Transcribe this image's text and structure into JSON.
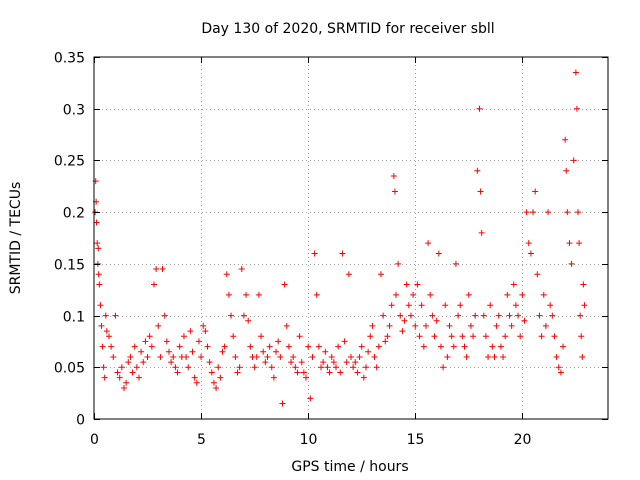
{
  "chart_data": {
    "type": "scatter",
    "title": "Day 130 of 2020, SRMTID for receiver sbll",
    "xlabel": "GPS time / hours",
    "ylabel": "SRMTID / TECUs",
    "xlim": [
      0,
      24
    ],
    "ylim": [
      0,
      0.35
    ],
    "xticks": [
      0,
      5,
      10,
      15,
      20
    ],
    "xtick_labels": [
      "0",
      "5",
      "10",
      "15",
      "20"
    ],
    "yticks": [
      0,
      0.05,
      0.1,
      0.15,
      0.2,
      0.25,
      0.3,
      0.35
    ],
    "ytick_labels": [
      "0",
      "0.05",
      "0.1",
      "0.15",
      "0.2",
      "0.25",
      "0.3",
      "0.35"
    ],
    "grid": true,
    "marker": "+",
    "color": "#ff0000",
    "series": [
      {
        "name": "SRMTID",
        "points": [
          [
            0.05,
            0.2
          ],
          [
            0.08,
            0.23
          ],
          [
            0.1,
            0.21
          ],
          [
            0.12,
            0.19
          ],
          [
            0.15,
            0.17
          ],
          [
            0.18,
            0.15
          ],
          [
            0.2,
            0.165
          ],
          [
            0.22,
            0.14
          ],
          [
            0.25,
            0.13
          ],
          [
            0.3,
            0.11
          ],
          [
            0.35,
            0.09
          ],
          [
            0.4,
            0.07
          ],
          [
            0.45,
            0.05
          ],
          [
            0.5,
            0.04
          ],
          [
            0.55,
            0.1
          ],
          [
            0.6,
            0.085
          ],
          [
            0.7,
            0.08
          ],
          [
            0.8,
            0.07
          ],
          [
            0.9,
            0.06
          ],
          [
            1.0,
            0.1
          ],
          [
            1.1,
            0.045
          ],
          [
            1.2,
            0.04
          ],
          [
            1.3,
            0.05
          ],
          [
            1.4,
            0.03
          ],
          [
            1.5,
            0.035
          ],
          [
            1.6,
            0.055
          ],
          [
            1.7,
            0.06
          ],
          [
            1.8,
            0.045
          ],
          [
            1.9,
            0.07
          ],
          [
            2.0,
            0.05
          ],
          [
            2.1,
            0.04
          ],
          [
            2.2,
            0.065
          ],
          [
            2.3,
            0.055
          ],
          [
            2.4,
            0.075
          ],
          [
            2.5,
            0.06
          ],
          [
            2.6,
            0.08
          ],
          [
            2.7,
            0.07
          ],
          [
            2.8,
            0.13
          ],
          [
            2.9,
            0.145
          ],
          [
            3.0,
            0.09
          ],
          [
            3.1,
            0.06
          ],
          [
            3.2,
            0.145
          ],
          [
            3.3,
            0.1
          ],
          [
            3.4,
            0.075
          ],
          [
            3.5,
            0.065
          ],
          [
            3.6,
            0.055
          ],
          [
            3.7,
            0.06
          ],
          [
            3.8,
            0.05
          ],
          [
            3.9,
            0.045
          ],
          [
            4.0,
            0.07
          ],
          [
            4.1,
            0.06
          ],
          [
            4.2,
            0.08
          ],
          [
            4.3,
            0.06
          ],
          [
            4.4,
            0.05
          ],
          [
            4.5,
            0.085
          ],
          [
            4.6,
            0.065
          ],
          [
            4.7,
            0.04
          ],
          [
            4.8,
            0.035
          ],
          [
            4.9,
            0.075
          ],
          [
            5.0,
            0.06
          ],
          [
            5.1,
            0.09
          ],
          [
            5.2,
            0.085
          ],
          [
            5.3,
            0.07
          ],
          [
            5.4,
            0.055
          ],
          [
            5.5,
            0.045
          ],
          [
            5.6,
            0.035
          ],
          [
            5.7,
            0.03
          ],
          [
            5.8,
            0.05
          ],
          [
            5.9,
            0.04
          ],
          [
            6.0,
            0.065
          ],
          [
            6.1,
            0.07
          ],
          [
            6.2,
            0.14
          ],
          [
            6.3,
            0.12
          ],
          [
            6.4,
            0.1
          ],
          [
            6.5,
            0.08
          ],
          [
            6.6,
            0.06
          ],
          [
            6.7,
            0.045
          ],
          [
            6.8,
            0.05
          ],
          [
            6.9,
            0.145
          ],
          [
            7.0,
            0.1
          ],
          [
            7.1,
            0.12
          ],
          [
            7.2,
            0.095
          ],
          [
            7.3,
            0.07
          ],
          [
            7.4,
            0.06
          ],
          [
            7.5,
            0.05
          ],
          [
            7.6,
            0.06
          ],
          [
            7.7,
            0.12
          ],
          [
            7.8,
            0.08
          ],
          [
            7.9,
            0.065
          ],
          [
            8.0,
            0.055
          ],
          [
            8.1,
            0.06
          ],
          [
            8.2,
            0.07
          ],
          [
            8.3,
            0.05
          ],
          [
            8.4,
            0.04
          ],
          [
            8.5,
            0.065
          ],
          [
            8.6,
            0.075
          ],
          [
            8.7,
            0.06
          ],
          [
            8.8,
            0.015
          ],
          [
            8.9,
            0.13
          ],
          [
            9.0,
            0.09
          ],
          [
            9.1,
            0.07
          ],
          [
            9.2,
            0.055
          ],
          [
            9.3,
            0.06
          ],
          [
            9.4,
            0.05
          ],
          [
            9.5,
            0.045
          ],
          [
            9.6,
            0.08
          ],
          [
            9.7,
            0.055
          ],
          [
            9.8,
            0.045
          ],
          [
            9.9,
            0.04
          ],
          [
            10.0,
            0.07
          ],
          [
            10.1,
            0.02
          ],
          [
            10.2,
            0.06
          ],
          [
            10.3,
            0.16
          ],
          [
            10.4,
            0.12
          ],
          [
            10.5,
            0.07
          ],
          [
            10.6,
            0.05
          ],
          [
            10.7,
            0.055
          ],
          [
            10.8,
            0.065
          ],
          [
            10.9,
            0.05
          ],
          [
            11.0,
            0.045
          ],
          [
            11.1,
            0.06
          ],
          [
            11.2,
            0.055
          ],
          [
            11.3,
            0.05
          ],
          [
            11.4,
            0.07
          ],
          [
            11.5,
            0.045
          ],
          [
            11.6,
            0.16
          ],
          [
            11.7,
            0.075
          ],
          [
            11.8,
            0.055
          ],
          [
            11.9,
            0.14
          ],
          [
            12.0,
            0.06
          ],
          [
            12.1,
            0.05
          ],
          [
            12.2,
            0.055
          ],
          [
            12.3,
            0.045
          ],
          [
            12.4,
            0.06
          ],
          [
            12.5,
            0.07
          ],
          [
            12.6,
            0.04
          ],
          [
            12.7,
            0.05
          ],
          [
            12.8,
            0.065
          ],
          [
            12.9,
            0.08
          ],
          [
            13.0,
            0.09
          ],
          [
            13.1,
            0.06
          ],
          [
            13.2,
            0.05
          ],
          [
            13.3,
            0.07
          ],
          [
            13.4,
            0.14
          ],
          [
            13.5,
            0.1
          ],
          [
            13.6,
            0.075
          ],
          [
            13.7,
            0.08
          ],
          [
            13.8,
            0.09
          ],
          [
            13.9,
            0.11
          ],
          [
            14.0,
            0.235
          ],
          [
            14.05,
            0.22
          ],
          [
            14.1,
            0.12
          ],
          [
            14.2,
            0.15
          ],
          [
            14.3,
            0.1
          ],
          [
            14.4,
            0.085
          ],
          [
            14.5,
            0.095
          ],
          [
            14.6,
            0.13
          ],
          [
            14.7,
            0.11
          ],
          [
            14.8,
            0.1
          ],
          [
            14.9,
            0.12
          ],
          [
            15.0,
            0.09
          ],
          [
            15.1,
            0.13
          ],
          [
            15.2,
            0.08
          ],
          [
            15.3,
            0.11
          ],
          [
            15.4,
            0.07
          ],
          [
            15.5,
            0.09
          ],
          [
            15.6,
            0.17
          ],
          [
            15.7,
            0.12
          ],
          [
            15.8,
            0.1
          ],
          [
            15.9,
            0.08
          ],
          [
            16.0,
            0.095
          ],
          [
            16.1,
            0.16
          ],
          [
            16.2,
            0.07
          ],
          [
            16.3,
            0.05
          ],
          [
            16.4,
            0.11
          ],
          [
            16.5,
            0.06
          ],
          [
            16.6,
            0.09
          ],
          [
            16.7,
            0.08
          ],
          [
            16.8,
            0.07
          ],
          [
            16.9,
            0.15
          ],
          [
            17.0,
            0.1
          ],
          [
            17.1,
            0.11
          ],
          [
            17.2,
            0.08
          ],
          [
            17.3,
            0.07
          ],
          [
            17.4,
            0.06
          ],
          [
            17.5,
            0.12
          ],
          [
            17.6,
            0.09
          ],
          [
            17.7,
            0.08
          ],
          [
            17.8,
            0.1
          ],
          [
            17.9,
            0.24
          ],
          [
            18.0,
            0.3
          ],
          [
            18.05,
            0.22
          ],
          [
            18.1,
            0.18
          ],
          [
            18.2,
            0.1
          ],
          [
            18.3,
            0.08
          ],
          [
            18.4,
            0.06
          ],
          [
            18.5,
            0.11
          ],
          [
            18.6,
            0.07
          ],
          [
            18.7,
            0.06
          ],
          [
            18.8,
            0.09
          ],
          [
            18.9,
            0.1
          ],
          [
            19.0,
            0.07
          ],
          [
            19.1,
            0.06
          ],
          [
            19.2,
            0.08
          ],
          [
            19.3,
            0.12
          ],
          [
            19.4,
            0.1
          ],
          [
            19.5,
            0.09
          ],
          [
            19.6,
            0.13
          ],
          [
            19.7,
            0.11
          ],
          [
            19.8,
            0.1
          ],
          [
            19.9,
            0.08
          ],
          [
            20.0,
            0.12
          ],
          [
            20.1,
            0.095
          ],
          [
            20.2,
            0.2
          ],
          [
            20.3,
            0.17
          ],
          [
            20.4,
            0.16
          ],
          [
            20.5,
            0.2
          ],
          [
            20.6,
            0.22
          ],
          [
            20.7,
            0.14
          ],
          [
            20.8,
            0.1
          ],
          [
            20.9,
            0.08
          ],
          [
            21.0,
            0.12
          ],
          [
            21.1,
            0.09
          ],
          [
            21.2,
            0.2
          ],
          [
            21.3,
            0.11
          ],
          [
            21.4,
            0.1
          ],
          [
            21.5,
            0.08
          ],
          [
            21.6,
            0.06
          ],
          [
            21.7,
            0.05
          ],
          [
            21.8,
            0.045
          ],
          [
            21.9,
            0.07
          ],
          [
            22.0,
            0.27
          ],
          [
            22.05,
            0.24
          ],
          [
            22.1,
            0.2
          ],
          [
            22.2,
            0.17
          ],
          [
            22.3,
            0.15
          ],
          [
            22.4,
            0.25
          ],
          [
            22.5,
            0.335
          ],
          [
            22.55,
            0.3
          ],
          [
            22.6,
            0.2
          ],
          [
            22.65,
            0.17
          ],
          [
            22.7,
            0.1
          ],
          [
            22.75,
            0.08
          ],
          [
            22.8,
            0.06
          ],
          [
            22.85,
            0.13
          ],
          [
            22.9,
            0.11
          ]
        ]
      }
    ]
  }
}
